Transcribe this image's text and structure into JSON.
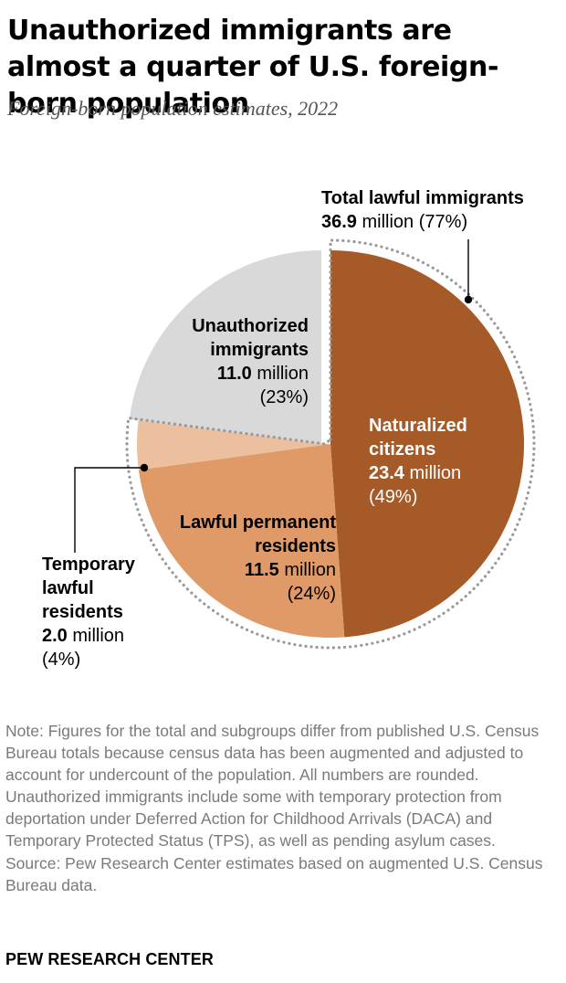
{
  "header": {
    "title": "Unauthorized immigrants are almost a quarter of U.S. foreign-born population",
    "subtitle": "Foreign-born population estimates, 2022"
  },
  "chart_data": {
    "type": "pie",
    "title": "Unauthorized immigrants are almost a quarter of U.S. foreign-born population",
    "subtitle": "Foreign-born population estimates, 2022",
    "unit": "million",
    "slices": [
      {
        "name": "Naturalized citizens",
        "value": 23.4,
        "percent": 49,
        "color": "#a65a28"
      },
      {
        "name": "Lawful permanent residents",
        "value": 11.5,
        "percent": 24,
        "color": "#df9a68"
      },
      {
        "name": "Temporary lawful residents",
        "value": 2.0,
        "percent": 4,
        "color": "#ecbf9e"
      },
      {
        "name": "Unauthorized immigrants",
        "value": 11.0,
        "percent": 23,
        "color": "#d9d9d9"
      }
    ],
    "groups": [
      {
        "name": "Total lawful immigrants",
        "value": 36.9,
        "percent": 77,
        "members": [
          "Naturalized citizens",
          "Lawful permanent residents",
          "Temporary lawful residents"
        ]
      }
    ]
  },
  "labels": {
    "total_lawful": {
      "name": "Total lawful immigrants",
      "value": "36.9",
      "unit": "million",
      "pct": "(77%)"
    },
    "unauthorized": {
      "name1": "Unauthorized",
      "name2": "immigrants",
      "value": "11.0",
      "unit": "million",
      "pct": "(23%)"
    },
    "naturalized": {
      "name1": "Naturalized",
      "name2": "citizens",
      "value": "23.4",
      "unit": "million",
      "pct": "(49%)"
    },
    "lpr": {
      "name1": "Lawful permanent",
      "name2": "residents",
      "value": "11.5",
      "unit": "million",
      "pct": "(24%)"
    },
    "temporary": {
      "name1": "Temporary",
      "name2": "lawful",
      "name3": "residents",
      "value": "2.0",
      "unit": "million",
      "pct": "(4%)"
    }
  },
  "footer": {
    "note": "Note: Figures for the total and subgroups differ from published U.S. Census Bureau totals because census data has been augmented and adjusted to account for undercount of the population. All numbers are rounded. Unauthorized immigrants include some with temporary protection from deportation under Deferred Action for Childhood Arrivals (DACA) and Temporary Protected Status (TPS), as well as pending asylum cases.",
    "source": "Source: Pew Research Center estimates based on augmented U.S. Census Bureau data.",
    "brand": "PEW RESEARCH CENTER"
  }
}
